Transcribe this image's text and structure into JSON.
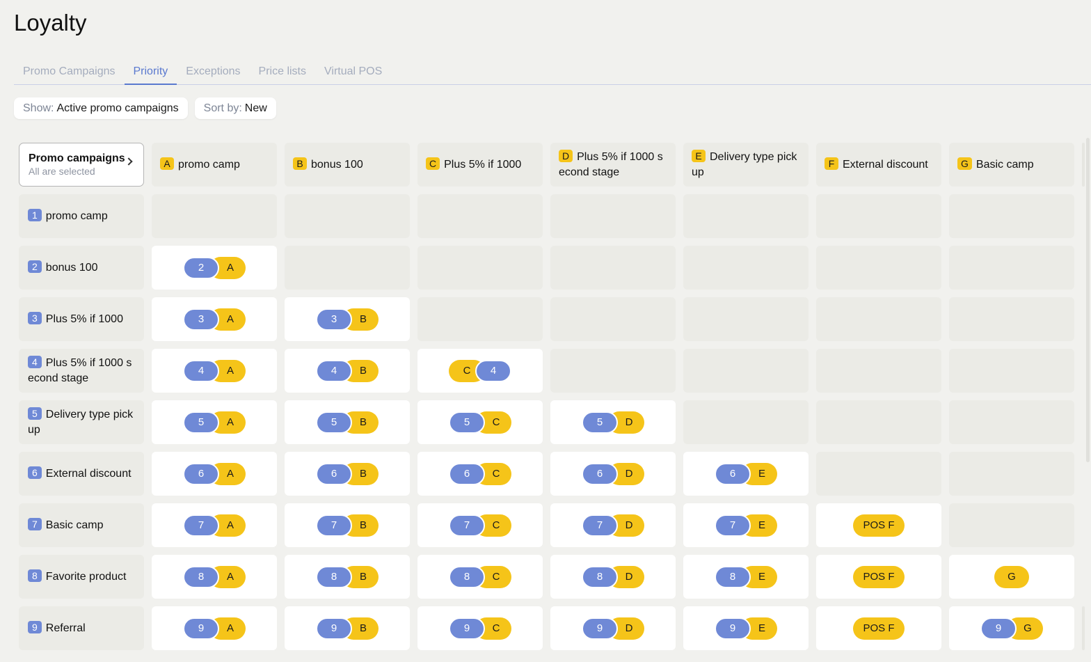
{
  "title": "Loyalty",
  "tabs": [
    {
      "label": "Promo Campaigns",
      "active": false
    },
    {
      "label": "Priority",
      "active": true
    },
    {
      "label": "Exceptions",
      "active": false
    },
    {
      "label": "Price lists",
      "active": false
    },
    {
      "label": "Virtual POS",
      "active": false
    }
  ],
  "filters": {
    "show_label": "Show:",
    "show_value": "Active promo campaigns",
    "sort_label": "Sort by:",
    "sort_value": "New"
  },
  "corner": {
    "title": "Promo campaigns",
    "subtitle": "All are selected"
  },
  "columns": [
    {
      "letter": "A",
      "name": "promo camp"
    },
    {
      "letter": "B",
      "name": "bonus 100"
    },
    {
      "letter": "C",
      "name": "Plus 5% if 1000"
    },
    {
      "letter": "D",
      "name": "Plus 5% if 1000 s econd stage"
    },
    {
      "letter": "E",
      "name": "Delivery type pick up"
    },
    {
      "letter": "F",
      "name": "External discount"
    },
    {
      "letter": "G",
      "name": "Basic camp"
    }
  ],
  "rows": [
    {
      "num": "1",
      "name": "promo camp",
      "cells": [
        null,
        null,
        null,
        null,
        null,
        null,
        null
      ]
    },
    {
      "num": "2",
      "name": "bonus 100",
      "cells": [
        {
          "kind": "pair",
          "left": "2",
          "right": "A"
        },
        null,
        null,
        null,
        null,
        null,
        null
      ]
    },
    {
      "num": "3",
      "name": "Plus 5% if 1000",
      "cells": [
        {
          "kind": "pair",
          "left": "3",
          "right": "A"
        },
        {
          "kind": "pair",
          "left": "3",
          "right": "B"
        },
        null,
        null,
        null,
        null,
        null
      ]
    },
    {
      "num": "4",
      "name": "Plus 5% if 1000 s econd stage",
      "cells": [
        {
          "kind": "pair",
          "left": "4",
          "right": "A"
        },
        {
          "kind": "pair",
          "left": "4",
          "right": "B"
        },
        {
          "kind": "pair-rev",
          "left": "C",
          "right": "4"
        },
        null,
        null,
        null,
        null
      ]
    },
    {
      "num": "5",
      "name": "Delivery type pick up",
      "cells": [
        {
          "kind": "pair",
          "left": "5",
          "right": "A"
        },
        {
          "kind": "pair",
          "left": "5",
          "right": "B"
        },
        {
          "kind": "pair",
          "left": "5",
          "right": "C"
        },
        {
          "kind": "pair",
          "left": "5",
          "right": "D"
        },
        null,
        null,
        null
      ]
    },
    {
      "num": "6",
      "name": "External discount",
      "cells": [
        {
          "kind": "pair",
          "left": "6",
          "right": "A"
        },
        {
          "kind": "pair",
          "left": "6",
          "right": "B"
        },
        {
          "kind": "pair",
          "left": "6",
          "right": "C"
        },
        {
          "kind": "pair",
          "left": "6",
          "right": "D"
        },
        {
          "kind": "pair",
          "left": "6",
          "right": "E"
        },
        null,
        null
      ]
    },
    {
      "num": "7",
      "name": "Basic camp",
      "cells": [
        {
          "kind": "pair",
          "left": "7",
          "right": "A"
        },
        {
          "kind": "pair",
          "left": "7",
          "right": "B"
        },
        {
          "kind": "pair",
          "left": "7",
          "right": "C"
        },
        {
          "kind": "pair",
          "left": "7",
          "right": "D"
        },
        {
          "kind": "pair",
          "left": "7",
          "right": "E"
        },
        {
          "kind": "single",
          "label": "POS F"
        },
        null
      ]
    },
    {
      "num": "8",
      "name": "Favorite product",
      "cells": [
        {
          "kind": "pair",
          "left": "8",
          "right": "A"
        },
        {
          "kind": "pair",
          "left": "8",
          "right": "B"
        },
        {
          "kind": "pair",
          "left": "8",
          "right": "C"
        },
        {
          "kind": "pair",
          "left": "8",
          "right": "D"
        },
        {
          "kind": "pair",
          "left": "8",
          "right": "E"
        },
        {
          "kind": "single",
          "label": "POS F"
        },
        {
          "kind": "single",
          "label": "G"
        }
      ]
    },
    {
      "num": "9",
      "name": "Referral",
      "cells": [
        {
          "kind": "pair",
          "left": "9",
          "right": "A"
        },
        {
          "kind": "pair",
          "left": "9",
          "right": "B"
        },
        {
          "kind": "pair",
          "left": "9",
          "right": "C"
        },
        {
          "kind": "pair",
          "left": "9",
          "right": "D"
        },
        {
          "kind": "pair",
          "left": "9",
          "right": "E"
        },
        {
          "kind": "single",
          "label": "POS F"
        },
        {
          "kind": "pair",
          "left": "9",
          "right": "G"
        }
      ]
    }
  ],
  "colors": {
    "background": "#f1f1ee",
    "accent_blue": "#6f89d6",
    "accent_yellow": "#f5c419",
    "tab_active": "#5a79cf",
    "tab_inactive": "#a4acbd",
    "empty_cell": "#ebebe6",
    "filled_cell": "#ffffff"
  },
  "icons": {
    "corner_arrow": "chevron-right-icon"
  }
}
